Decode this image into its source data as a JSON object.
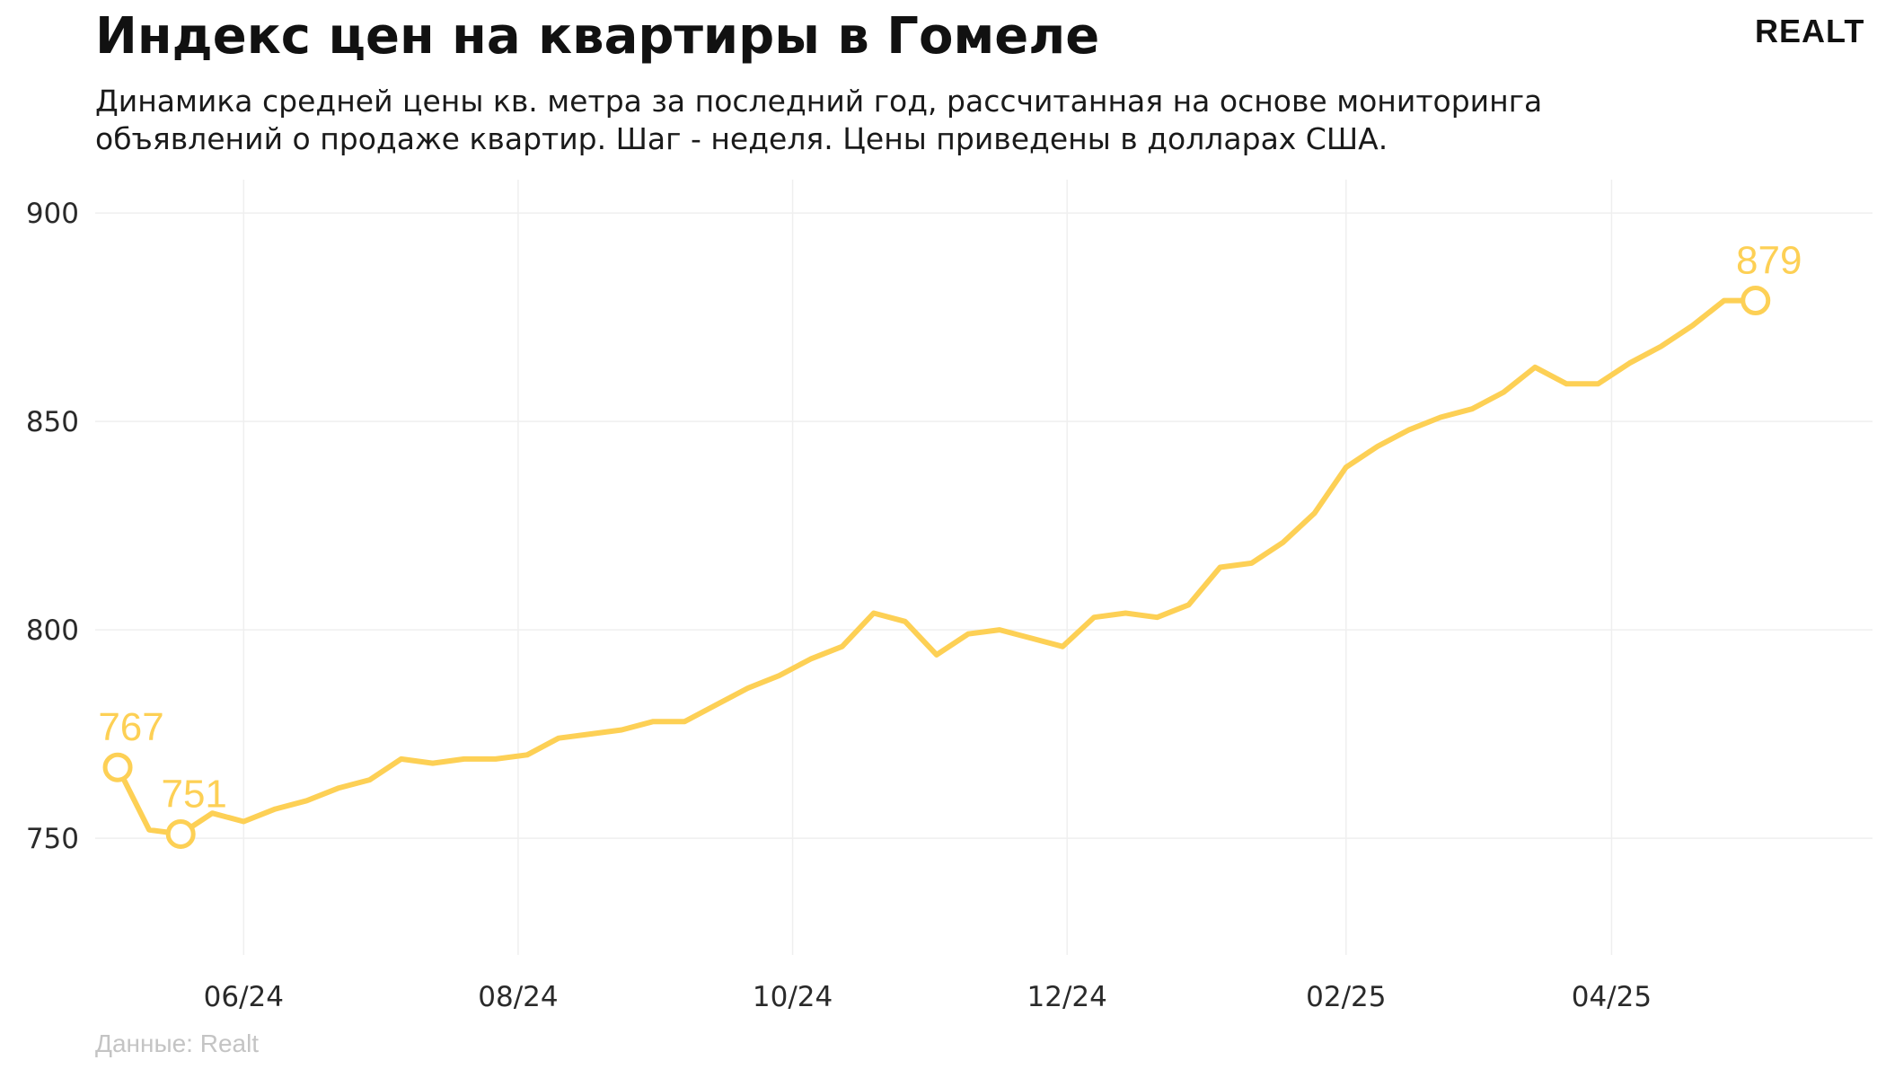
{
  "title": "Индекс цен на квартиры в Гомеле",
  "subtitle": "Динамика средней цены кв. метра за последний год, рассчитанная на основе мониторинга объявлений о продаже квартир. Шаг - неделя. Цены приведены в долларах США.",
  "logo": "REALT",
  "source": "Данные: Realt",
  "colors": {
    "line": "#fdd055",
    "grid": "#efefef",
    "text": "#111111",
    "source": "#c4c4c4"
  },
  "chart_data": {
    "type": "line",
    "title": "Индекс цен на квартиры в Гомеле",
    "xlabel": "",
    "ylabel": "",
    "ylim": [
      722,
      908
    ],
    "y_ticks": [
      750,
      800,
      850,
      900
    ],
    "y_tick_labels": [
      "750",
      "800",
      "850",
      "900"
    ],
    "x_ticks": [
      "2024-06-01",
      "2024-08-01",
      "2024-10-01",
      "2024-12-01",
      "2025-02-01",
      "2025-04-01"
    ],
    "x_tick_labels": [
      "06/24",
      "08/24",
      "10/24",
      "12/24",
      "02/25",
      "04/25"
    ],
    "xlim": [
      "2024-04-29",
      "2025-05-29"
    ],
    "grid": true,
    "legend": "none",
    "series": [
      {
        "x": [
          "2024-05-04",
          "2024-05-11",
          "2024-05-18",
          "2024-05-25",
          "2024-06-01",
          "2024-06-08",
          "2024-06-15",
          "2024-06-22",
          "2024-06-29",
          "2024-07-06",
          "2024-07-13",
          "2024-07-20",
          "2024-07-27",
          "2024-08-03",
          "2024-08-10",
          "2024-08-17",
          "2024-08-24",
          "2024-08-31",
          "2024-09-07",
          "2024-09-14",
          "2024-09-21",
          "2024-09-28",
          "2024-10-05",
          "2024-10-12",
          "2024-10-19",
          "2024-10-26",
          "2024-11-02",
          "2024-11-09",
          "2024-11-16",
          "2024-11-23",
          "2024-11-30",
          "2024-12-07",
          "2024-12-14",
          "2024-12-21",
          "2024-12-28",
          "2025-01-04",
          "2025-01-11",
          "2025-01-18",
          "2025-01-25",
          "2025-02-01",
          "2025-02-08",
          "2025-02-15",
          "2025-02-22",
          "2025-03-01",
          "2025-03-08",
          "2025-03-15",
          "2025-03-22",
          "2025-03-29",
          "2025-04-05",
          "2025-04-12",
          "2025-04-19",
          "2025-04-26",
          "2025-05-03"
        ],
        "values": [
          767,
          752,
          751,
          756,
          754,
          757,
          759,
          762,
          764,
          769,
          768,
          769,
          769,
          770,
          774,
          775,
          776,
          778,
          778,
          782,
          786,
          789,
          793,
          796,
          804,
          802,
          794,
          799,
          800,
          798,
          796,
          803,
          804,
          803,
          806,
          815,
          816,
          821,
          828,
          839,
          844,
          848,
          851,
          853,
          857,
          863,
          859,
          859,
          864,
          868,
          873,
          879,
          879
        ]
      }
    ],
    "annotations": [
      {
        "x": "2024-05-04",
        "value": 767,
        "label": "767"
      },
      {
        "x": "2024-05-18",
        "value": 751,
        "label": "751"
      },
      {
        "x": "2025-05-03",
        "value": 879,
        "label": "879"
      }
    ]
  }
}
